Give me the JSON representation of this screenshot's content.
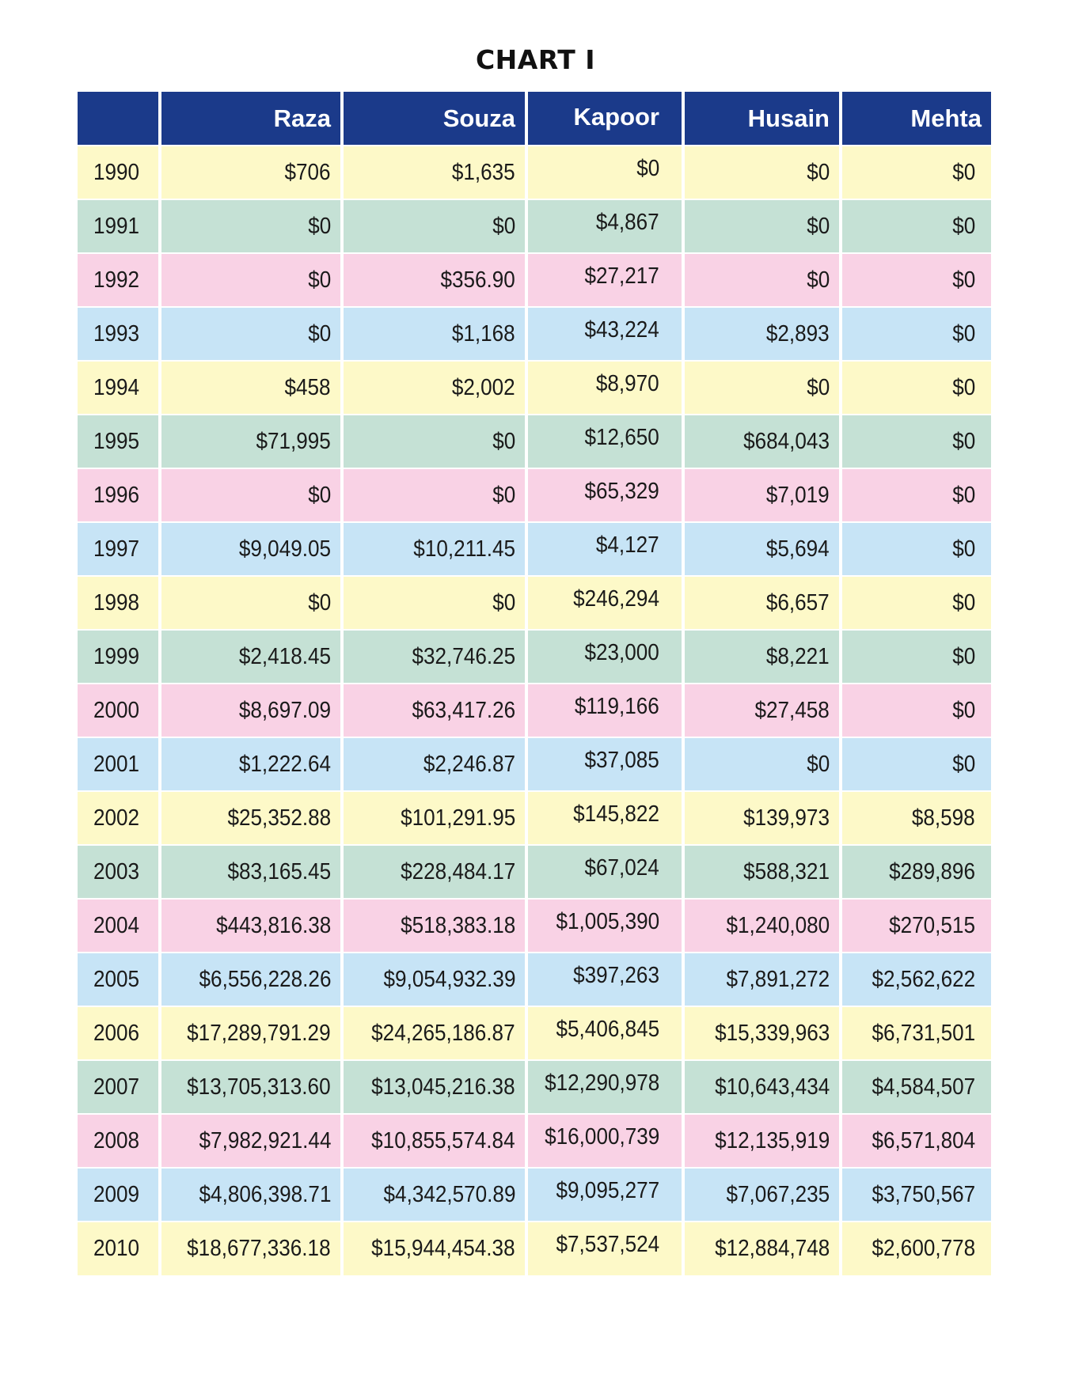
{
  "chart_data": {
    "type": "table",
    "title": "CHART I",
    "columns": [
      "",
      "Raza",
      "Souza",
      "Kapoor",
      "Husain",
      "Mehta"
    ],
    "rows": [
      [
        "1990",
        "$706",
        "$1,635",
        "$0",
        "$0",
        "$0"
      ],
      [
        "1991",
        "$0",
        "$0",
        "$4,867",
        "$0",
        "$0"
      ],
      [
        "1992",
        "$0",
        "$356.90",
        "$27,217",
        "$0",
        "$0"
      ],
      [
        "1993",
        "$0",
        "$1,168",
        "$43,224",
        "$2,893",
        "$0"
      ],
      [
        "1994",
        "$458",
        "$2,002",
        "$8,970",
        "$0",
        "$0"
      ],
      [
        "1995",
        "$71,995",
        "$0",
        "$12,650",
        "$684,043",
        "$0"
      ],
      [
        "1996",
        "$0",
        "$0",
        "$65,329",
        "$7,019",
        "$0"
      ],
      [
        "1997",
        "$9,049.05",
        "$10,211.45",
        "$4,127",
        "$5,694",
        "$0"
      ],
      [
        "1998",
        "$0",
        "$0",
        "$246,294",
        "$6,657",
        "$0"
      ],
      [
        "1999",
        "$2,418.45",
        "$32,746.25",
        "$23,000",
        "$8,221",
        "$0"
      ],
      [
        "2000",
        "$8,697.09",
        "$63,417.26",
        "$119,166",
        "$27,458",
        "$0"
      ],
      [
        "2001",
        "$1,222.64",
        "$2,246.87",
        "$37,085",
        "$0",
        "$0"
      ],
      [
        "2002",
        "$25,352.88",
        "$101,291.95",
        "$145,822",
        "$139,973",
        "$8,598"
      ],
      [
        "2003",
        "$83,165.45",
        "$228,484.17",
        "$67,024",
        "$588,321",
        "$289,896"
      ],
      [
        "2004",
        "$443,816.38",
        "$518,383.18",
        "$1,005,390",
        "$1,240,080",
        "$270,515"
      ],
      [
        "2005",
        "$6,556,228.26",
        "$9,054,932.39",
        "$397,263",
        "$7,891,272",
        "$2,562,622"
      ],
      [
        "2006",
        "$17,289,791.29",
        "$24,265,186.87",
        "$5,406,845",
        "$15,339,963",
        "$6,731,501"
      ],
      [
        "2007",
        "$13,705,313.60",
        "$13,045,216.38",
        "$12,290,978",
        "$10,643,434",
        "$4,584,507"
      ],
      [
        "2008",
        "$7,982,921.44",
        "$10,855,574.84",
        "$16,000,739",
        "$12,135,919",
        "$6,571,804"
      ],
      [
        "2009",
        "$4,806,398.71",
        "$4,342,570.89",
        "$9,095,277",
        "$7,067,235",
        "$3,750,567"
      ],
      [
        "2010",
        "$18,677,336.18",
        "$15,944,454.38",
        "$7,537,524",
        "$12,884,748",
        "$2,600,778"
      ]
    ],
    "colors": {
      "header": "#1b3a8a",
      "row_cycle": [
        "#fdf9c8",
        "#c5e1d5",
        "#f9d2e5",
        "#c7e4f6"
      ]
    }
  }
}
